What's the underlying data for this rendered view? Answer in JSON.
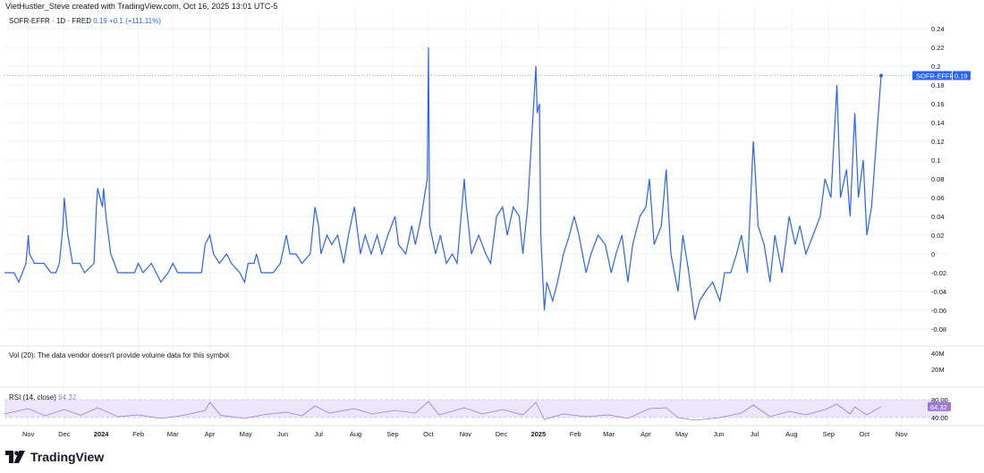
{
  "credit": "VietHustler_Steve created with TradingView.com, Oct 16, 2025 13:01 UTC-5",
  "header": {
    "symbol": "SOFR-EFFR · 1D · FRED",
    "last": "0.19",
    "change": "+0.1 (+111.11%)"
  },
  "volume_note": "Vol (20): The data vendor doesn't provide volume data for this symbol.",
  "rsi_header": {
    "label": "RSI (14, close)",
    "value": "64.32"
  },
  "brand": {
    "name": "TradingView"
  },
  "price_axis": {
    "ticks": [
      "0.24",
      "0.22",
      "0.2",
      "0.18",
      "0.16",
      "0.14",
      "0.12",
      "0.1",
      "0.08",
      "0.06",
      "0.04",
      "0.02",
      "0",
      "-0.02",
      "-0.04",
      "-0.06",
      "-0.08"
    ],
    "label_name": "SOFR-EFFR",
    "label_value": "0.19"
  },
  "volume_axis": {
    "ticks": [
      "40M",
      "20M"
    ]
  },
  "rsi_axis": {
    "ticks": [
      "80.00",
      "40.00"
    ],
    "current": "64.32"
  },
  "time_axis": {
    "labels": [
      {
        "t": "Nov",
        "d": "2023-11-01"
      },
      {
        "t": "Dec",
        "d": "2023-12-01"
      },
      {
        "t": "2024",
        "d": "2024-01-01",
        "bold": true
      },
      {
        "t": "Feb",
        "d": "2024-02-01"
      },
      {
        "t": "Mar",
        "d": "2024-03-01"
      },
      {
        "t": "Apr",
        "d": "2024-04-01"
      },
      {
        "t": "May",
        "d": "2024-05-01"
      },
      {
        "t": "Jun",
        "d": "2024-06-01"
      },
      {
        "t": "Jul",
        "d": "2024-07-01"
      },
      {
        "t": "Aug",
        "d": "2024-08-01"
      },
      {
        "t": "Sep",
        "d": "2024-09-01"
      },
      {
        "t": "Oct",
        "d": "2024-10-01"
      },
      {
        "t": "Nov",
        "d": "2024-11-01"
      },
      {
        "t": "Dec",
        "d": "2024-12-01"
      },
      {
        "t": "2025",
        "d": "2025-01-01",
        "bold": true
      },
      {
        "t": "Feb",
        "d": "2025-02-01"
      },
      {
        "t": "Mar",
        "d": "2025-03-01"
      },
      {
        "t": "Apr",
        "d": "2025-04-01"
      },
      {
        "t": "May",
        "d": "2025-05-01"
      },
      {
        "t": "Jun",
        "d": "2025-06-01"
      },
      {
        "t": "Jul",
        "d": "2025-07-01"
      },
      {
        "t": "Aug",
        "d": "2025-08-01"
      },
      {
        "t": "Sep",
        "d": "2025-09-01"
      },
      {
        "t": "Oct",
        "d": "2025-10-01"
      },
      {
        "t": "Nov",
        "d": "2025-11-01"
      }
    ]
  },
  "colors": {
    "line": "#2962ff",
    "rsi": "#9c7ad6",
    "rsi_band": "#ede5f9",
    "grid": "#f0f3fa",
    "axis_text": "#131722"
  },
  "chart_data": [
    {
      "type": "line",
      "title": "SOFR-EFFR · 1D · FRED",
      "xlabel": "",
      "ylabel": "",
      "ylim": [
        -0.09,
        0.25
      ],
      "grid": true,
      "series": [
        {
          "name": "SOFR-EFFR",
          "points": [
            [
              "2023-10-12",
              -0.02
            ],
            [
              "2023-10-20",
              -0.02
            ],
            [
              "2023-10-24",
              -0.03
            ],
            [
              "2023-10-27",
              -0.02
            ],
            [
              "2023-10-30",
              -0.01
            ],
            [
              "2023-11-01",
              0.02
            ],
            [
              "2023-11-02",
              0.0
            ],
            [
              "2023-11-06",
              -0.01
            ],
            [
              "2023-11-14",
              -0.01
            ],
            [
              "2023-11-20",
              -0.02
            ],
            [
              "2023-11-24",
              -0.02
            ],
            [
              "2023-11-27",
              -0.01
            ],
            [
              "2023-11-30",
              0.03
            ],
            [
              "2023-12-01",
              0.06
            ],
            [
              "2023-12-04",
              0.02
            ],
            [
              "2023-12-08",
              -0.01
            ],
            [
              "2023-12-14",
              -0.01
            ],
            [
              "2023-12-18",
              -0.02
            ],
            [
              "2023-12-26",
              -0.01
            ],
            [
              "2023-12-28",
              0.05
            ],
            [
              "2023-12-29",
              0.07
            ],
            [
              "2024-01-02",
              0.05
            ],
            [
              "2024-01-03",
              0.07
            ],
            [
              "2024-01-05",
              0.04
            ],
            [
              "2024-01-09",
              0.0
            ],
            [
              "2024-01-15",
              -0.02
            ],
            [
              "2024-01-29",
              -0.02
            ],
            [
              "2024-02-01",
              -0.01
            ],
            [
              "2024-02-05",
              -0.02
            ],
            [
              "2024-02-12",
              -0.01
            ],
            [
              "2024-02-16",
              -0.02
            ],
            [
              "2024-02-20",
              -0.03
            ],
            [
              "2024-02-26",
              -0.02
            ],
            [
              "2024-03-01",
              -0.01
            ],
            [
              "2024-03-05",
              -0.02
            ],
            [
              "2024-03-25",
              -0.02
            ],
            [
              "2024-03-28",
              0.01
            ],
            [
              "2024-04-01",
              0.02
            ],
            [
              "2024-04-04",
              0.0
            ],
            [
              "2024-04-09",
              -0.01
            ],
            [
              "2024-04-15",
              0.0
            ],
            [
              "2024-04-19",
              -0.01
            ],
            [
              "2024-04-26",
              -0.02
            ],
            [
              "2024-04-30",
              -0.03
            ],
            [
              "2024-05-03",
              -0.01
            ],
            [
              "2024-05-08",
              -0.01
            ],
            [
              "2024-05-10",
              0.0
            ],
            [
              "2024-05-14",
              -0.02
            ],
            [
              "2024-05-24",
              -0.02
            ],
            [
              "2024-05-30",
              -0.01
            ],
            [
              "2024-06-04",
              0.02
            ],
            [
              "2024-06-07",
              0.0
            ],
            [
              "2024-06-12",
              0.0
            ],
            [
              "2024-06-17",
              -0.01
            ],
            [
              "2024-06-24",
              0.0
            ],
            [
              "2024-06-28",
              0.05
            ],
            [
              "2024-07-01",
              0.03
            ],
            [
              "2024-07-03",
              0.0
            ],
            [
              "2024-07-08",
              0.02
            ],
            [
              "2024-07-12",
              0.01
            ],
            [
              "2024-07-17",
              0.02
            ],
            [
              "2024-07-22",
              -0.01
            ],
            [
              "2024-07-26",
              0.02
            ],
            [
              "2024-07-31",
              0.05
            ],
            [
              "2024-08-05",
              0.0
            ],
            [
              "2024-08-09",
              0.02
            ],
            [
              "2024-08-14",
              0.0
            ],
            [
              "2024-08-19",
              0.02
            ],
            [
              "2024-08-23",
              0.0
            ],
            [
              "2024-08-28",
              0.02
            ],
            [
              "2024-09-03",
              0.04
            ],
            [
              "2024-09-06",
              0.01
            ],
            [
              "2024-09-12",
              0.0
            ],
            [
              "2024-09-17",
              0.03
            ],
            [
              "2024-09-20",
              0.01
            ],
            [
              "2024-09-25",
              0.04
            ],
            [
              "2024-09-30",
              0.08
            ],
            [
              "2024-10-01",
              0.22
            ],
            [
              "2024-10-02",
              0.03
            ],
            [
              "2024-10-07",
              0.0
            ],
            [
              "2024-10-11",
              0.02
            ],
            [
              "2024-10-16",
              -0.01
            ],
            [
              "2024-10-21",
              0.0
            ],
            [
              "2024-10-25",
              -0.01
            ],
            [
              "2024-10-31",
              0.08
            ],
            [
              "2024-11-01",
              0.06
            ],
            [
              "2024-11-06",
              0.0
            ],
            [
              "2024-11-12",
              0.02
            ],
            [
              "2024-11-18",
              0.0
            ],
            [
              "2024-11-22",
              -0.01
            ],
            [
              "2024-11-27",
              0.04
            ],
            [
              "2024-12-02",
              0.05
            ],
            [
              "2024-12-06",
              0.02
            ],
            [
              "2024-12-11",
              0.05
            ],
            [
              "2024-12-16",
              0.04
            ],
            [
              "2024-12-19",
              0.0
            ],
            [
              "2024-12-23",
              0.05
            ],
            [
              "2024-12-30",
              0.2
            ],
            [
              "2024-12-31",
              0.15
            ],
            [
              "2025-01-02",
              0.16
            ],
            [
              "2025-01-03",
              0.02
            ],
            [
              "2025-01-06",
              -0.06
            ],
            [
              "2025-01-08",
              -0.03
            ],
            [
              "2025-01-13",
              -0.05
            ],
            [
              "2025-01-17",
              -0.03
            ],
            [
              "2025-01-22",
              0.0
            ],
            [
              "2025-01-27",
              0.02
            ],
            [
              "2025-01-31",
              0.04
            ],
            [
              "2025-02-04",
              0.02
            ],
            [
              "2025-02-10",
              -0.02
            ],
            [
              "2025-02-14",
              0.0
            ],
            [
              "2025-02-20",
              0.02
            ],
            [
              "2025-02-26",
              0.01
            ],
            [
              "2025-03-03",
              -0.02
            ],
            [
              "2025-03-07",
              0.0
            ],
            [
              "2025-03-12",
              0.02
            ],
            [
              "2025-03-17",
              -0.03
            ],
            [
              "2025-03-21",
              0.01
            ],
            [
              "2025-03-27",
              0.04
            ],
            [
              "2025-04-01",
              0.05
            ],
            [
              "2025-04-04",
              0.08
            ],
            [
              "2025-04-08",
              0.01
            ],
            [
              "2025-04-14",
              0.03
            ],
            [
              "2025-04-18",
              0.09
            ],
            [
              "2025-04-22",
              0.0
            ],
            [
              "2025-04-28",
              -0.04
            ],
            [
              "2025-05-02",
              0.02
            ],
            [
              "2025-05-07",
              -0.02
            ],
            [
              "2025-05-12",
              -0.07
            ],
            [
              "2025-05-16",
              -0.05
            ],
            [
              "2025-05-21",
              -0.04
            ],
            [
              "2025-05-27",
              -0.03
            ],
            [
              "2025-06-02",
              -0.05
            ],
            [
              "2025-06-06",
              -0.02
            ],
            [
              "2025-06-11",
              -0.02
            ],
            [
              "2025-06-16",
              0.0
            ],
            [
              "2025-06-20",
              0.02
            ],
            [
              "2025-06-25",
              -0.02
            ],
            [
              "2025-06-30",
              0.12
            ],
            [
              "2025-07-01",
              0.1
            ],
            [
              "2025-07-04",
              0.03
            ],
            [
              "2025-07-09",
              0.01
            ],
            [
              "2025-07-14",
              -0.03
            ],
            [
              "2025-07-18",
              0.02
            ],
            [
              "2025-07-24",
              -0.02
            ],
            [
              "2025-07-30",
              0.04
            ],
            [
              "2025-08-04",
              0.01
            ],
            [
              "2025-08-08",
              0.03
            ],
            [
              "2025-08-13",
              0.0
            ],
            [
              "2025-08-19",
              0.02
            ],
            [
              "2025-08-25",
              0.04
            ],
            [
              "2025-08-29",
              0.08
            ],
            [
              "2025-09-03",
              0.06
            ],
            [
              "2025-09-08",
              0.18
            ],
            [
              "2025-09-11",
              0.06
            ],
            [
              "2025-09-16",
              0.09
            ],
            [
              "2025-09-19",
              0.04
            ],
            [
              "2025-09-23",
              0.15
            ],
            [
              "2025-09-26",
              0.06
            ],
            [
              "2025-09-30",
              0.1
            ],
            [
              "2025-10-03",
              0.02
            ],
            [
              "2025-10-07",
              0.05
            ],
            [
              "2025-10-15",
              0.19
            ]
          ]
        }
      ]
    },
    {
      "type": "line",
      "title": "RSI (14, close)",
      "xlabel": "",
      "ylabel": "",
      "ylim": [
        20,
        100
      ],
      "bands": [
        40,
        80
      ],
      "series": [
        {
          "name": "RSI (14, close)",
          "points": [
            [
              "2023-10-12",
              48
            ],
            [
              "2023-11-01",
              60
            ],
            [
              "2023-11-15",
              44
            ],
            [
              "2023-12-01",
              58
            ],
            [
              "2023-12-15",
              45
            ],
            [
              "2023-12-29",
              62
            ],
            [
              "2024-01-15",
              42
            ],
            [
              "2024-02-01",
              46
            ],
            [
              "2024-02-20",
              38
            ],
            [
              "2024-03-10",
              45
            ],
            [
              "2024-03-28",
              56
            ],
            [
              "2024-04-01",
              74
            ],
            [
              "2024-04-10",
              45
            ],
            [
              "2024-04-30",
              38
            ],
            [
              "2024-05-15",
              46
            ],
            [
              "2024-06-04",
              52
            ],
            [
              "2024-06-17",
              44
            ],
            [
              "2024-06-28",
              66
            ],
            [
              "2024-07-10",
              50
            ],
            [
              "2024-07-31",
              60
            ],
            [
              "2024-08-15",
              48
            ],
            [
              "2024-09-03",
              56
            ],
            [
              "2024-09-20",
              50
            ],
            [
              "2024-10-01",
              76
            ],
            [
              "2024-10-10",
              46
            ],
            [
              "2024-10-31",
              62
            ],
            [
              "2024-11-15",
              48
            ],
            [
              "2024-12-02",
              58
            ],
            [
              "2024-12-19",
              46
            ],
            [
              "2024-12-30",
              74
            ],
            [
              "2025-01-06",
              36
            ],
            [
              "2025-01-22",
              48
            ],
            [
              "2025-02-10",
              42
            ],
            [
              "2025-03-01",
              46
            ],
            [
              "2025-03-17",
              38
            ],
            [
              "2025-04-04",
              60
            ],
            [
              "2025-04-18",
              62
            ],
            [
              "2025-04-28",
              40
            ],
            [
              "2025-05-12",
              34
            ],
            [
              "2025-06-02",
              40
            ],
            [
              "2025-06-20",
              50
            ],
            [
              "2025-06-30",
              68
            ],
            [
              "2025-07-14",
              42
            ],
            [
              "2025-07-30",
              54
            ],
            [
              "2025-08-13",
              46
            ],
            [
              "2025-08-29",
              58
            ],
            [
              "2025-09-08",
              70
            ],
            [
              "2025-09-19",
              48
            ],
            [
              "2025-09-23",
              64
            ],
            [
              "2025-10-03",
              46
            ],
            [
              "2025-10-15",
              64.32
            ]
          ]
        }
      ]
    }
  ]
}
